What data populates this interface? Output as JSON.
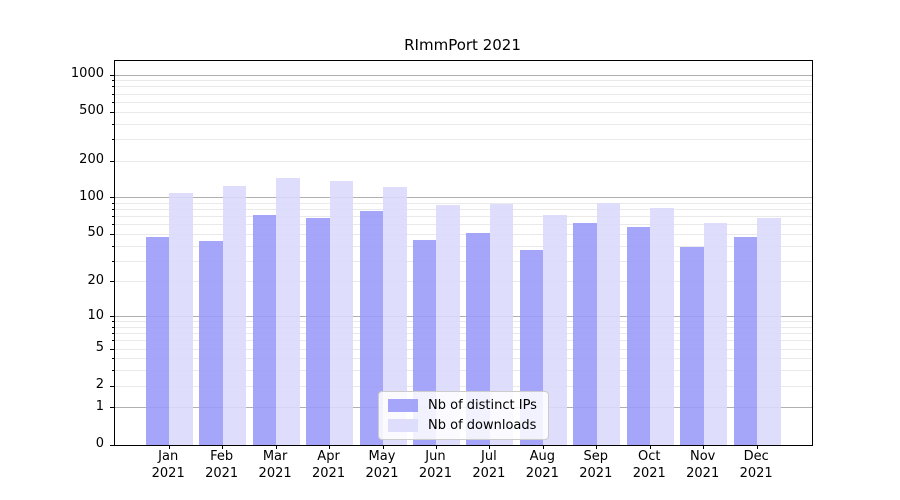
{
  "chart_data": {
    "type": "bar",
    "title": "RImmPort 2021",
    "categories": [
      "Jan 2021",
      "Feb 2021",
      "Mar 2021",
      "Apr 2021",
      "May 2021",
      "Jun 2021",
      "Jul 2021",
      "Aug 2021",
      "Sep 2021",
      "Oct 2021",
      "Nov 2021",
      "Dec 2021"
    ],
    "series": [
      {
        "name": "Nb of distinct IPs",
        "key": "distinct-ips",
        "color": "rgba(155,155,250,0.9)",
        "values": [
          48,
          44,
          72,
          69,
          78,
          45,
          51,
          37,
          62,
          58,
          39,
          48
        ]
      },
      {
        "name": "Nb of downloads",
        "key": "downloads",
        "color": "rgba(218,218,252,0.9)",
        "values": [
          110,
          126,
          145,
          137,
          122,
          87,
          89,
          73,
          91,
          83,
          62,
          69
        ]
      }
    ],
    "xlabel": "",
    "ylabel": "",
    "yscale": "log1p",
    "yticks": [
      0,
      1,
      2,
      5,
      10,
      20,
      50,
      100,
      200,
      500,
      1000
    ],
    "ylim": [
      0,
      1300
    ],
    "grid": {
      "horizontal": true,
      "vertical": false,
      "major_color": "#b0b0b0",
      "minor_color": "#e9e9e9"
    },
    "legend_position": "inside-bottom-center",
    "axis_color": "#000000",
    "text_color": "#000000",
    "background_color": "#ffffff"
  }
}
